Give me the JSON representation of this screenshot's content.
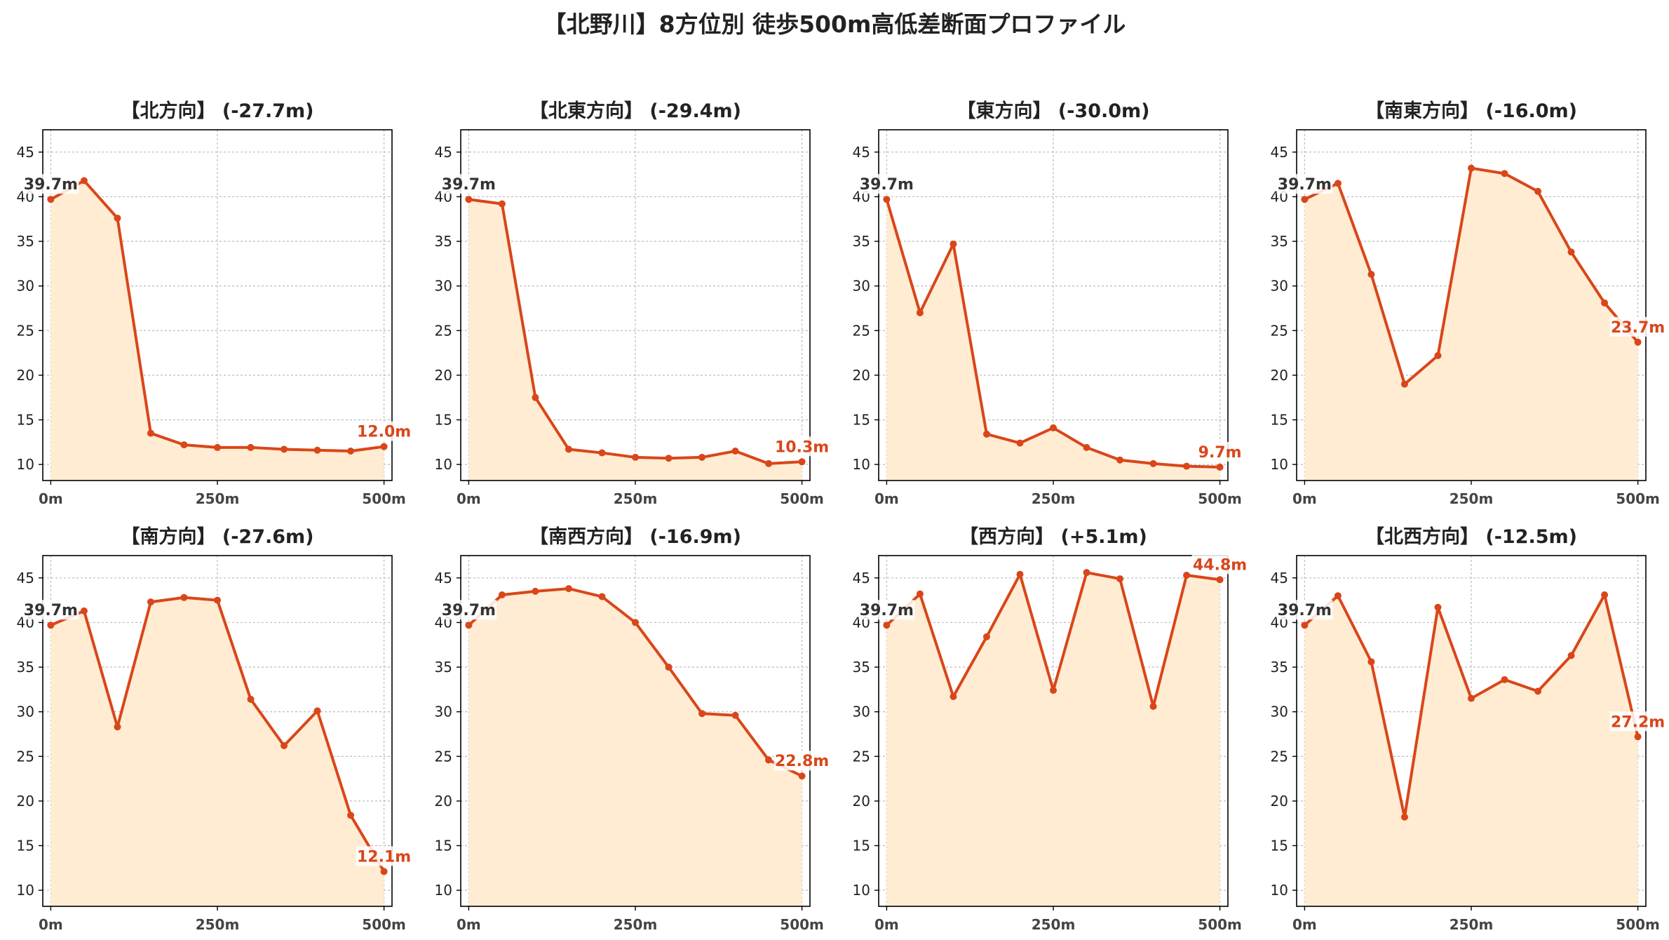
{
  "suptitle": "【北野川】8方位別 徒歩500m高低差断面プロファイル",
  "colors": {
    "line": "#d9461a",
    "fill": "#ffecd2",
    "start_label": "#333333",
    "end_label": "#d9461a",
    "grid": "#bbbbbb",
    "axis": "#000000"
  },
  "chart_data": [
    {
      "type": "area",
      "title": "【北方向】 (-27.7m)",
      "x": [
        0,
        50,
        100,
        150,
        200,
        250,
        300,
        350,
        400,
        450,
        500
      ],
      "y": [
        39.7,
        41.8,
        37.6,
        13.5,
        12.2,
        11.9,
        11.9,
        11.7,
        11.6,
        11.5,
        12.0
      ],
      "start_label": "39.7m",
      "end_label": "12.0m",
      "xticks": [
        "0m",
        "250m",
        "500m"
      ],
      "yticks": [
        10,
        15,
        20,
        25,
        30,
        35,
        40,
        45
      ],
      "xlim": [
        -12,
        512
      ],
      "ylim": [
        8.2,
        47.5
      ],
      "grid": true
    },
    {
      "type": "area",
      "title": "【北東方向】 (-29.4m)",
      "x": [
        0,
        50,
        100,
        150,
        200,
        250,
        300,
        350,
        400,
        450,
        500
      ],
      "y": [
        39.7,
        39.2,
        17.5,
        11.7,
        11.3,
        10.8,
        10.7,
        10.8,
        11.5,
        10.1,
        10.3
      ],
      "start_label": "39.7m",
      "end_label": "10.3m",
      "xticks": [
        "0m",
        "250m",
        "500m"
      ],
      "yticks": [
        10,
        15,
        20,
        25,
        30,
        35,
        40,
        45
      ],
      "xlim": [
        -12,
        512
      ],
      "ylim": [
        8.2,
        47.5
      ],
      "grid": true
    },
    {
      "type": "area",
      "title": "【東方向】 (-30.0m)",
      "x": [
        0,
        50,
        100,
        150,
        200,
        250,
        300,
        350,
        400,
        450,
        500
      ],
      "y": [
        39.7,
        27.0,
        34.7,
        13.4,
        12.4,
        14.1,
        11.9,
        10.5,
        10.1,
        9.8,
        9.7
      ],
      "start_label": "39.7m",
      "end_label": "9.7m",
      "xticks": [
        "0m",
        "250m",
        "500m"
      ],
      "yticks": [
        10,
        15,
        20,
        25,
        30,
        35,
        40,
        45
      ],
      "xlim": [
        -12,
        512
      ],
      "ylim": [
        8.2,
        47.5
      ],
      "grid": true
    },
    {
      "type": "area",
      "title": "【南東方向】 (-16.0m)",
      "x": [
        0,
        50,
        100,
        150,
        200,
        250,
        300,
        350,
        400,
        450,
        500
      ],
      "y": [
        39.7,
        41.5,
        31.3,
        19.0,
        22.2,
        43.2,
        42.6,
        40.6,
        33.8,
        28.1,
        23.7
      ],
      "start_label": "39.7m",
      "end_label": "23.7m",
      "xticks": [
        "0m",
        "250m",
        "500m"
      ],
      "yticks": [
        10,
        15,
        20,
        25,
        30,
        35,
        40,
        45
      ],
      "xlim": [
        -12,
        512
      ],
      "ylim": [
        8.2,
        47.5
      ],
      "grid": true
    },
    {
      "type": "area",
      "title": "【南方向】 (-27.6m)",
      "x": [
        0,
        50,
        100,
        150,
        200,
        250,
        300,
        350,
        400,
        450,
        500
      ],
      "y": [
        39.7,
        41.3,
        28.3,
        42.3,
        42.8,
        42.5,
        31.4,
        26.2,
        30.1,
        18.4,
        12.1
      ],
      "start_label": "39.7m",
      "end_label": "12.1m",
      "xticks": [
        "0m",
        "250m",
        "500m"
      ],
      "yticks": [
        10,
        15,
        20,
        25,
        30,
        35,
        40,
        45
      ],
      "xlim": [
        -12,
        512
      ],
      "ylim": [
        8.2,
        47.5
      ],
      "grid": true
    },
    {
      "type": "area",
      "title": "【南西方向】 (-16.9m)",
      "x": [
        0,
        50,
        100,
        150,
        200,
        250,
        300,
        350,
        400,
        450,
        500
      ],
      "y": [
        39.7,
        43.1,
        43.5,
        43.8,
        42.9,
        40.0,
        35.0,
        29.8,
        29.6,
        24.6,
        22.8
      ],
      "start_label": "39.7m",
      "end_label": "22.8m",
      "xticks": [
        "0m",
        "250m",
        "500m"
      ],
      "yticks": [
        10,
        15,
        20,
        25,
        30,
        35,
        40,
        45
      ],
      "xlim": [
        -12,
        512
      ],
      "ylim": [
        8.2,
        47.5
      ],
      "grid": true
    },
    {
      "type": "area",
      "title": "【西方向】 (+5.1m)",
      "x": [
        0,
        50,
        100,
        150,
        200,
        250,
        300,
        350,
        400,
        450,
        500
      ],
      "y": [
        39.7,
        43.2,
        31.7,
        38.4,
        45.4,
        32.4,
        45.6,
        44.9,
        30.6,
        45.3,
        44.8
      ],
      "start_label": "39.7m",
      "end_label": "44.8m",
      "xticks": [
        "0m",
        "250m",
        "500m"
      ],
      "yticks": [
        10,
        15,
        20,
        25,
        30,
        35,
        40,
        45
      ],
      "xlim": [
        -12,
        512
      ],
      "ylim": [
        8.2,
        47.5
      ],
      "grid": true
    },
    {
      "type": "area",
      "title": "【北西方向】 (-12.5m)",
      "x": [
        0,
        50,
        100,
        150,
        200,
        250,
        300,
        350,
        400,
        450,
        500
      ],
      "y": [
        39.7,
        43.0,
        35.6,
        18.2,
        41.7,
        31.5,
        33.6,
        32.3,
        36.3,
        43.1,
        27.2
      ],
      "start_label": "39.7m",
      "end_label": "27.2m",
      "xticks": [
        "0m",
        "250m",
        "500m"
      ],
      "yticks": [
        10,
        15,
        20,
        25,
        30,
        35,
        40,
        45
      ],
      "xlim": [
        -12,
        512
      ],
      "ylim": [
        8.2,
        47.5
      ],
      "grid": true
    }
  ]
}
